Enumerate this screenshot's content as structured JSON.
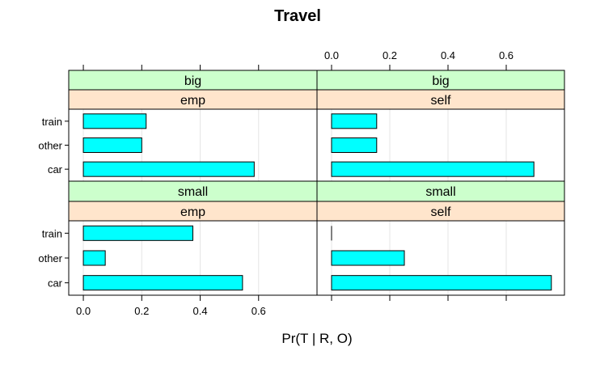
{
  "chart_data": {
    "type": "bar",
    "orientation": "horizontal",
    "title": "Travel",
    "xlabel": "Pr(T | R, O)",
    "ylabel": "",
    "xlim": [
      -0.05,
      0.8
    ],
    "x_ticks": [
      0.0,
      0.2,
      0.4,
      0.6
    ],
    "x_tick_labels": [
      "0.0",
      "0.2",
      "0.4",
      "0.6"
    ],
    "categories": [
      "train",
      "other",
      "car"
    ],
    "grid": true,
    "colors": {
      "bar_fill": "#00ffff",
      "strip_top": "#ccffcc",
      "strip_bottom": "#ffe5cc",
      "grid": "#e6e6e6",
      "frame": "#000000"
    },
    "panels": [
      {
        "row": "big",
        "col": "emp",
        "strip_top": "big",
        "strip_bottom": "emp",
        "values": {
          "train": 0.215,
          "other": 0.2,
          "car": 0.585
        }
      },
      {
        "row": "big",
        "col": "self",
        "strip_top": "big",
        "strip_bottom": "self",
        "values": {
          "train": 0.155,
          "other": 0.155,
          "car": 0.695
        }
      },
      {
        "row": "small",
        "col": "emp",
        "strip_top": "small",
        "strip_bottom": "emp",
        "values": {
          "train": 0.375,
          "other": 0.075,
          "car": 0.545
        }
      },
      {
        "row": "small",
        "col": "self",
        "strip_top": "small",
        "strip_bottom": "self",
        "values": {
          "train": 0.0,
          "other": 0.25,
          "car": 0.755
        }
      }
    ]
  }
}
